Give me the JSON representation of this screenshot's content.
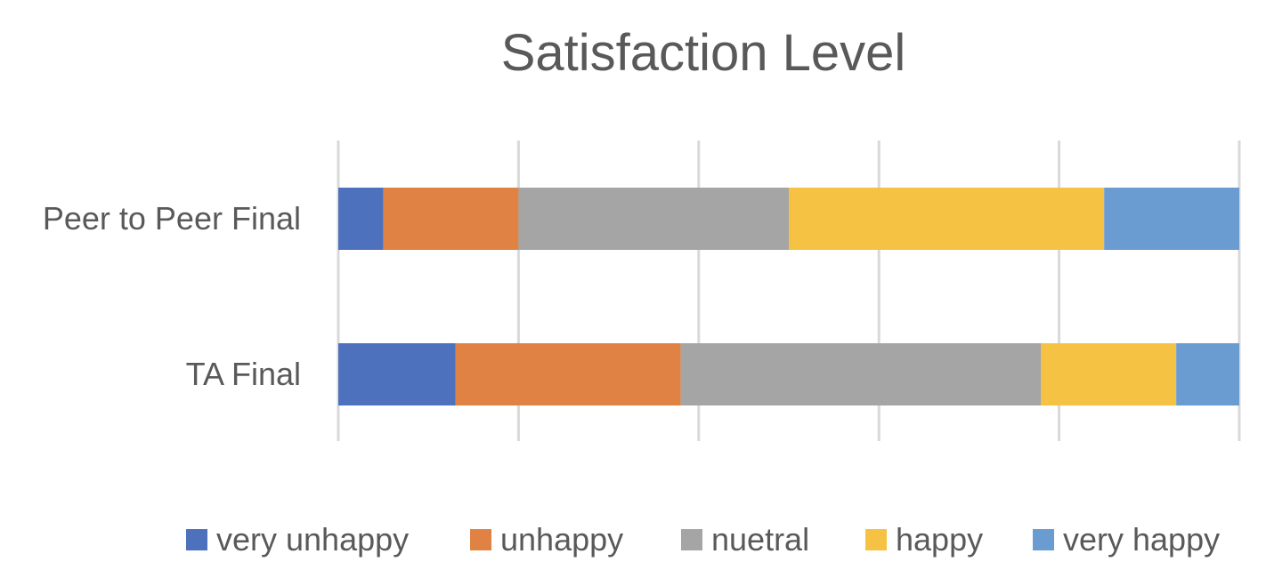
{
  "chart_data": {
    "type": "bar",
    "orientation": "horizontal",
    "stacked": "percent",
    "title": "Satisfaction Level",
    "categories": [
      "Peer to Peer Final",
      "TA Final"
    ],
    "series": [
      {
        "name": "very unhappy",
        "color": "#4E71BE",
        "values": [
          5,
          13
        ]
      },
      {
        "name": "unhappy",
        "color": "#E08243",
        "values": [
          15,
          25
        ]
      },
      {
        "name": "nuetral",
        "color": "#A5A5A5",
        "values": [
          30,
          40
        ]
      },
      {
        "name": "happy",
        "color": "#F5C243",
        "values": [
          35,
          15
        ]
      },
      {
        "name": "very happy",
        "color": "#6A9BD1",
        "values": [
          15,
          7
        ]
      }
    ],
    "xlim": [
      0,
      100
    ],
    "gridlines": true,
    "legend": "bottom"
  }
}
